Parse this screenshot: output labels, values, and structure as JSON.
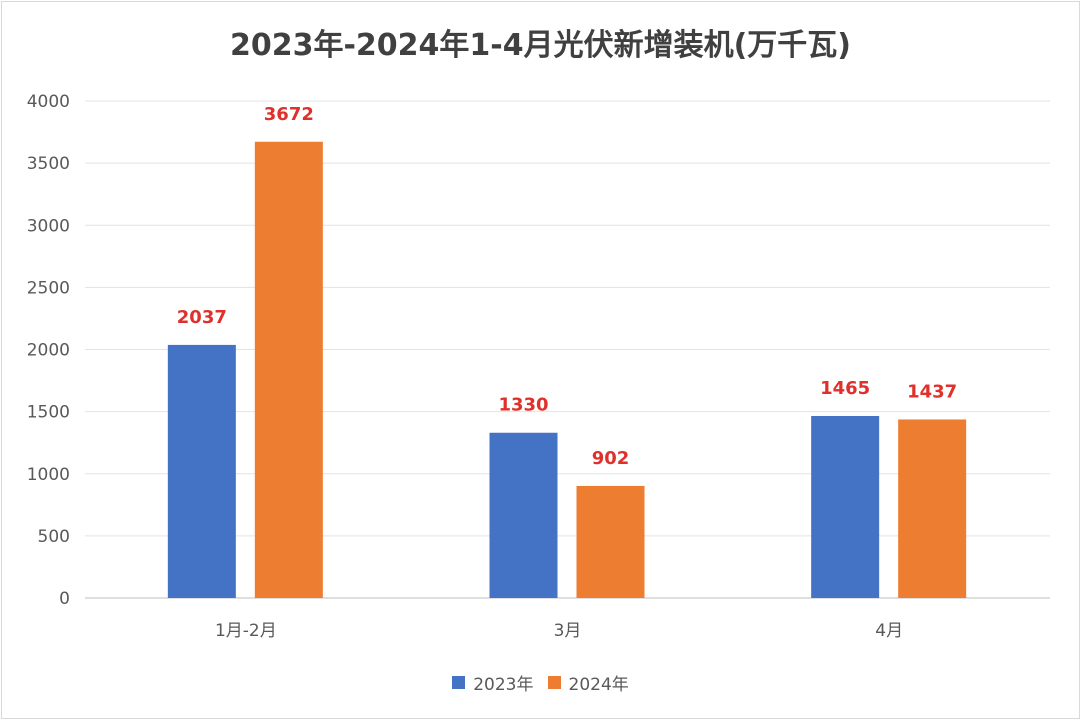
{
  "chart_data": {
    "type": "bar",
    "title": "2023年-2024年1-4月光伏新增装机(万千瓦)",
    "categories": [
      "1月-2月",
      "3月",
      "4月"
    ],
    "series": [
      {
        "name": "2023年",
        "values": [
          2037,
          1330,
          1465
        ],
        "color": "#4472c4"
      },
      {
        "name": "2024年",
        "values": [
          3672,
          902,
          1437
        ],
        "color": "#ed7d31"
      }
    ],
    "ylim": [
      0,
      4000
    ],
    "yticks": [
      0,
      500,
      1000,
      1500,
      2000,
      2500,
      3000,
      3500,
      4000
    ],
    "grid": true,
    "legend": "bottom",
    "data_label_color": "#e0302b"
  }
}
